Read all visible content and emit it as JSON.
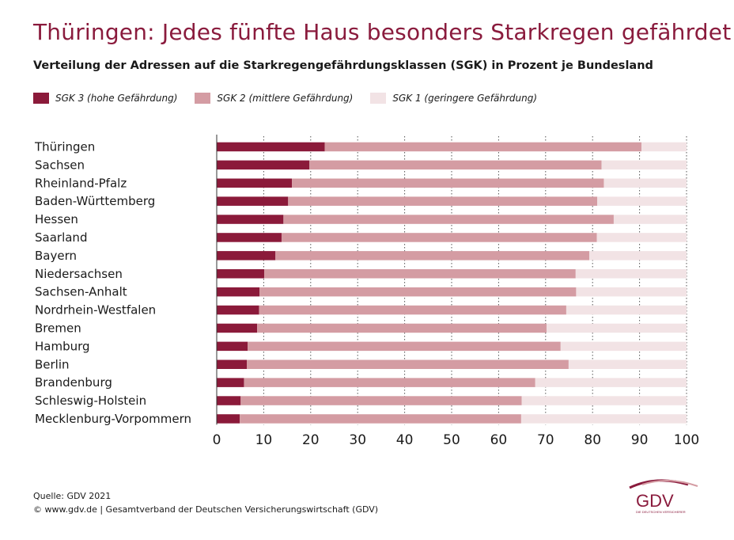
{
  "title": "Thüringen: Jedes fünfte Haus besonders Starkregen gefährdet",
  "subtitle": "Verteilung der Adressen auf die Starkregengefährdungsklassen (SGK) in Prozent je Bundesland",
  "legend": [
    {
      "label": "SGK 3 (hohe Gefährdung)",
      "color": "#8b1a3a"
    },
    {
      "label": "SGK 2 (mittlere Gefährdung)",
      "color": "#d49ca3"
    },
    {
      "label": "SGK 1 (geringere Gefährdung)",
      "color": "#f2e3e5"
    }
  ],
  "footer": {
    "source": "Quelle: GDV 2021",
    "copyright": "© www.gdv.de | Gesamtverband der Deutschen Versicherungswirtschaft (GDV)"
  },
  "logo": {
    "text": "GDV",
    "tagline": "DIE DEUTSCHEN VERSICHERER"
  },
  "chart_data": {
    "type": "bar",
    "orientation": "horizontal",
    "stacked": true,
    "categories": [
      "Thüringen",
      "Sachsen",
      "Rheinland-Pfalz",
      "Baden-Württemberg",
      "Hessen",
      "Saarland",
      "Bayern",
      "Niedersachsen",
      "Sachsen-Anhalt",
      "Nordrhein-Westfalen",
      "Bremen",
      "Hamburg",
      "Berlin",
      "Brandenburg",
      "Schleswig-Holstein",
      "Mecklenburg-Vorpommern"
    ],
    "series": [
      {
        "name": "SGK 3 (hohe Gefährdung)",
        "color": "#8b1a3a",
        "values": [
          23.0,
          19.7,
          16.0,
          15.2,
          14.2,
          13.8,
          12.5,
          10.1,
          9.1,
          9.0,
          8.6,
          6.6,
          6.4,
          5.8,
          5.1,
          4.9
        ]
      },
      {
        "name": "SGK 2 (mittlere Gefährdung)",
        "color": "#d49ca3",
        "values": [
          67.4,
          62.2,
          66.4,
          65.8,
          70.3,
          67.1,
          66.8,
          66.3,
          67.4,
          65.4,
          61.6,
          66.6,
          68.5,
          62.0,
          59.8,
          59.9
        ]
      },
      {
        "name": "SGK 1 (geringere Gefährdung)",
        "color": "#f2e3e5",
        "values": [
          9.6,
          18.1,
          17.6,
          19.0,
          15.5,
          19.1,
          20.7,
          23.6,
          23.5,
          25.6,
          29.8,
          26.8,
          25.1,
          32.2,
          35.1,
          35.2
        ]
      }
    ],
    "xlim": [
      0,
      100
    ],
    "xticks": [
      0,
      10,
      20,
      30,
      40,
      50,
      60,
      70,
      80,
      90,
      100
    ],
    "grid": "vertical dotted"
  }
}
